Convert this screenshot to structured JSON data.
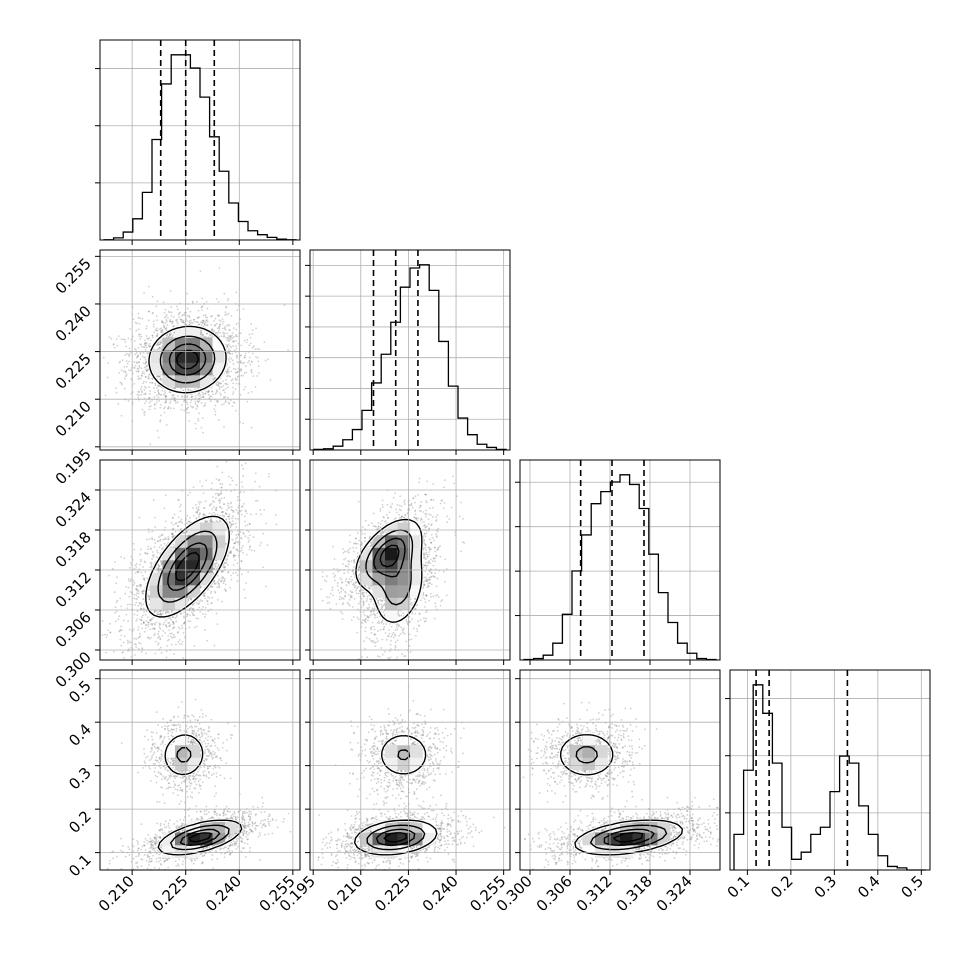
{
  "chart_data": {
    "type": "corner",
    "title": "",
    "grid": true,
    "colors": {
      "line": "#000000",
      "grid": "#b0b0b0",
      "scatter": "#7a7a7a",
      "background": "#ffffff"
    },
    "params": [
      {
        "range": [
          0.201,
          0.257
        ],
        "ticks": [
          0.21,
          0.225,
          0.24,
          0.255
        ],
        "tick_labels": [
          "0.210",
          "0.225",
          "0.240",
          "0.255"
        ],
        "hist_levels": 3,
        "quantiles": [
          0.218,
          0.225,
          0.233
        ]
      },
      {
        "range": [
          0.194,
          0.257
        ],
        "ticks": [
          0.195,
          0.21,
          0.225,
          0.24,
          0.255
        ],
        "tick_labels": [
          "0.195",
          "0.210",
          "0.225",
          "0.240",
          "0.255"
        ],
        "hist_levels": 6,
        "quantiles": [
          0.214,
          0.221,
          0.228
        ]
      },
      {
        "range": [
          0.2985,
          0.3285
        ],
        "ticks": [
          0.3,
          0.306,
          0.312,
          0.318,
          0.324
        ],
        "tick_labels": [
          "0.300",
          "0.306",
          "0.312",
          "0.318",
          "0.324"
        ],
        "hist_levels": 4,
        "quantiles": [
          0.3076,
          0.3123,
          0.3171
        ]
      },
      {
        "range": [
          0.06,
          0.52
        ],
        "ticks": [
          0.1,
          0.2,
          0.3,
          0.4,
          0.5
        ],
        "tick_labels": [
          "0.1",
          "0.2",
          "0.3",
          "0.4",
          "0.5"
        ],
        "hist_levels": 3,
        "quantiles": [
          0.12,
          0.15,
          0.33
        ]
      }
    ],
    "histograms": [
      {
        "param": 0,
        "values": [
          0.1,
          0.8,
          3,
          8,
          18,
          38,
          59,
          70,
          70,
          65,
          54,
          39,
          26,
          14,
          7,
          3.5,
          2,
          1,
          0.3,
          0.1
        ]
      },
      {
        "param": 1,
        "values": [
          0.1,
          0.2,
          0.6,
          1.6,
          3.2,
          6.2,
          10.5,
          15,
          20,
          25.5,
          28.5,
          29,
          25,
          17,
          10,
          5,
          2.4,
          0.9,
          0.4,
          0.1
        ]
      },
      {
        "param": 2,
        "values": [
          0.1,
          0.3,
          1,
          3.5,
          9.5,
          18.5,
          26,
          32.5,
          35,
          37,
          38.5,
          36.5,
          31.5,
          22,
          14,
          7.8,
          3.5,
          1.4,
          0.3,
          0.1
        ]
      },
      {
        "param": 3,
        "values": [
          0.5,
          1.4,
          2.6,
          2.2,
          1.5,
          0.6,
          0.15,
          0.25,
          0.5,
          0.6,
          1.1,
          1.6,
          1.5,
          0.9,
          0.5,
          0.2,
          0.05,
          0.03,
          0.0,
          0.0
        ]
      }
    ],
    "pairs": [
      {
        "x": 0,
        "y": 1,
        "modes": [
          {
            "w": 1,
            "cx": 0.2255,
            "cy": 0.2225,
            "sx": 0.006,
            "sy": 0.0058,
            "rho": 0.05
          }
        ]
      },
      {
        "x": 0,
        "y": 2,
        "modes": [
          {
            "w": 1,
            "cx": 0.2255,
            "cy": 0.3125,
            "sx": 0.0065,
            "sy": 0.0042,
            "rho": 0.62
          }
        ]
      },
      {
        "x": 1,
        "y": 2,
        "modes": [
          {
            "w": 0.55,
            "cx": 0.2185,
            "cy": 0.3145,
            "sx": 0.0058,
            "sy": 0.0029,
            "rho": 0.55
          },
          {
            "w": 0.45,
            "cx": 0.222,
            "cy": 0.3095,
            "sx": 0.0048,
            "sy": 0.0036,
            "rho": 0.25
          }
        ]
      },
      {
        "x": 0,
        "y": 3,
        "modes": [
          {
            "w": 0.35,
            "cx": 0.2245,
            "cy": 0.325,
            "sx": 0.0038,
            "sy": 0.033,
            "rho": 0.05
          },
          {
            "w": 0.65,
            "cx": 0.229,
            "cy": 0.135,
            "sx": 0.0065,
            "sy": 0.022,
            "rho": 0.55
          }
        ]
      },
      {
        "x": 1,
        "y": 3,
        "modes": [
          {
            "w": 0.35,
            "cx": 0.2235,
            "cy": 0.325,
            "sx": 0.0052,
            "sy": 0.033,
            "rho": 0.0
          },
          {
            "w": 0.65,
            "cx": 0.221,
            "cy": 0.135,
            "sx": 0.0072,
            "sy": 0.022,
            "rho": 0.25
          }
        ]
      },
      {
        "x": 2,
        "y": 3,
        "modes": [
          {
            "w": 0.35,
            "cx": 0.3085,
            "cy": 0.325,
            "sx": 0.0028,
            "sy": 0.033,
            "rho": 0.0
          },
          {
            "w": 0.65,
            "cx": 0.3148,
            "cy": 0.135,
            "sx": 0.0045,
            "sy": 0.022,
            "rho": 0.4
          }
        ]
      }
    ],
    "contour_levels": [
      0.2,
      0.45,
      0.7,
      0.88
    ]
  }
}
